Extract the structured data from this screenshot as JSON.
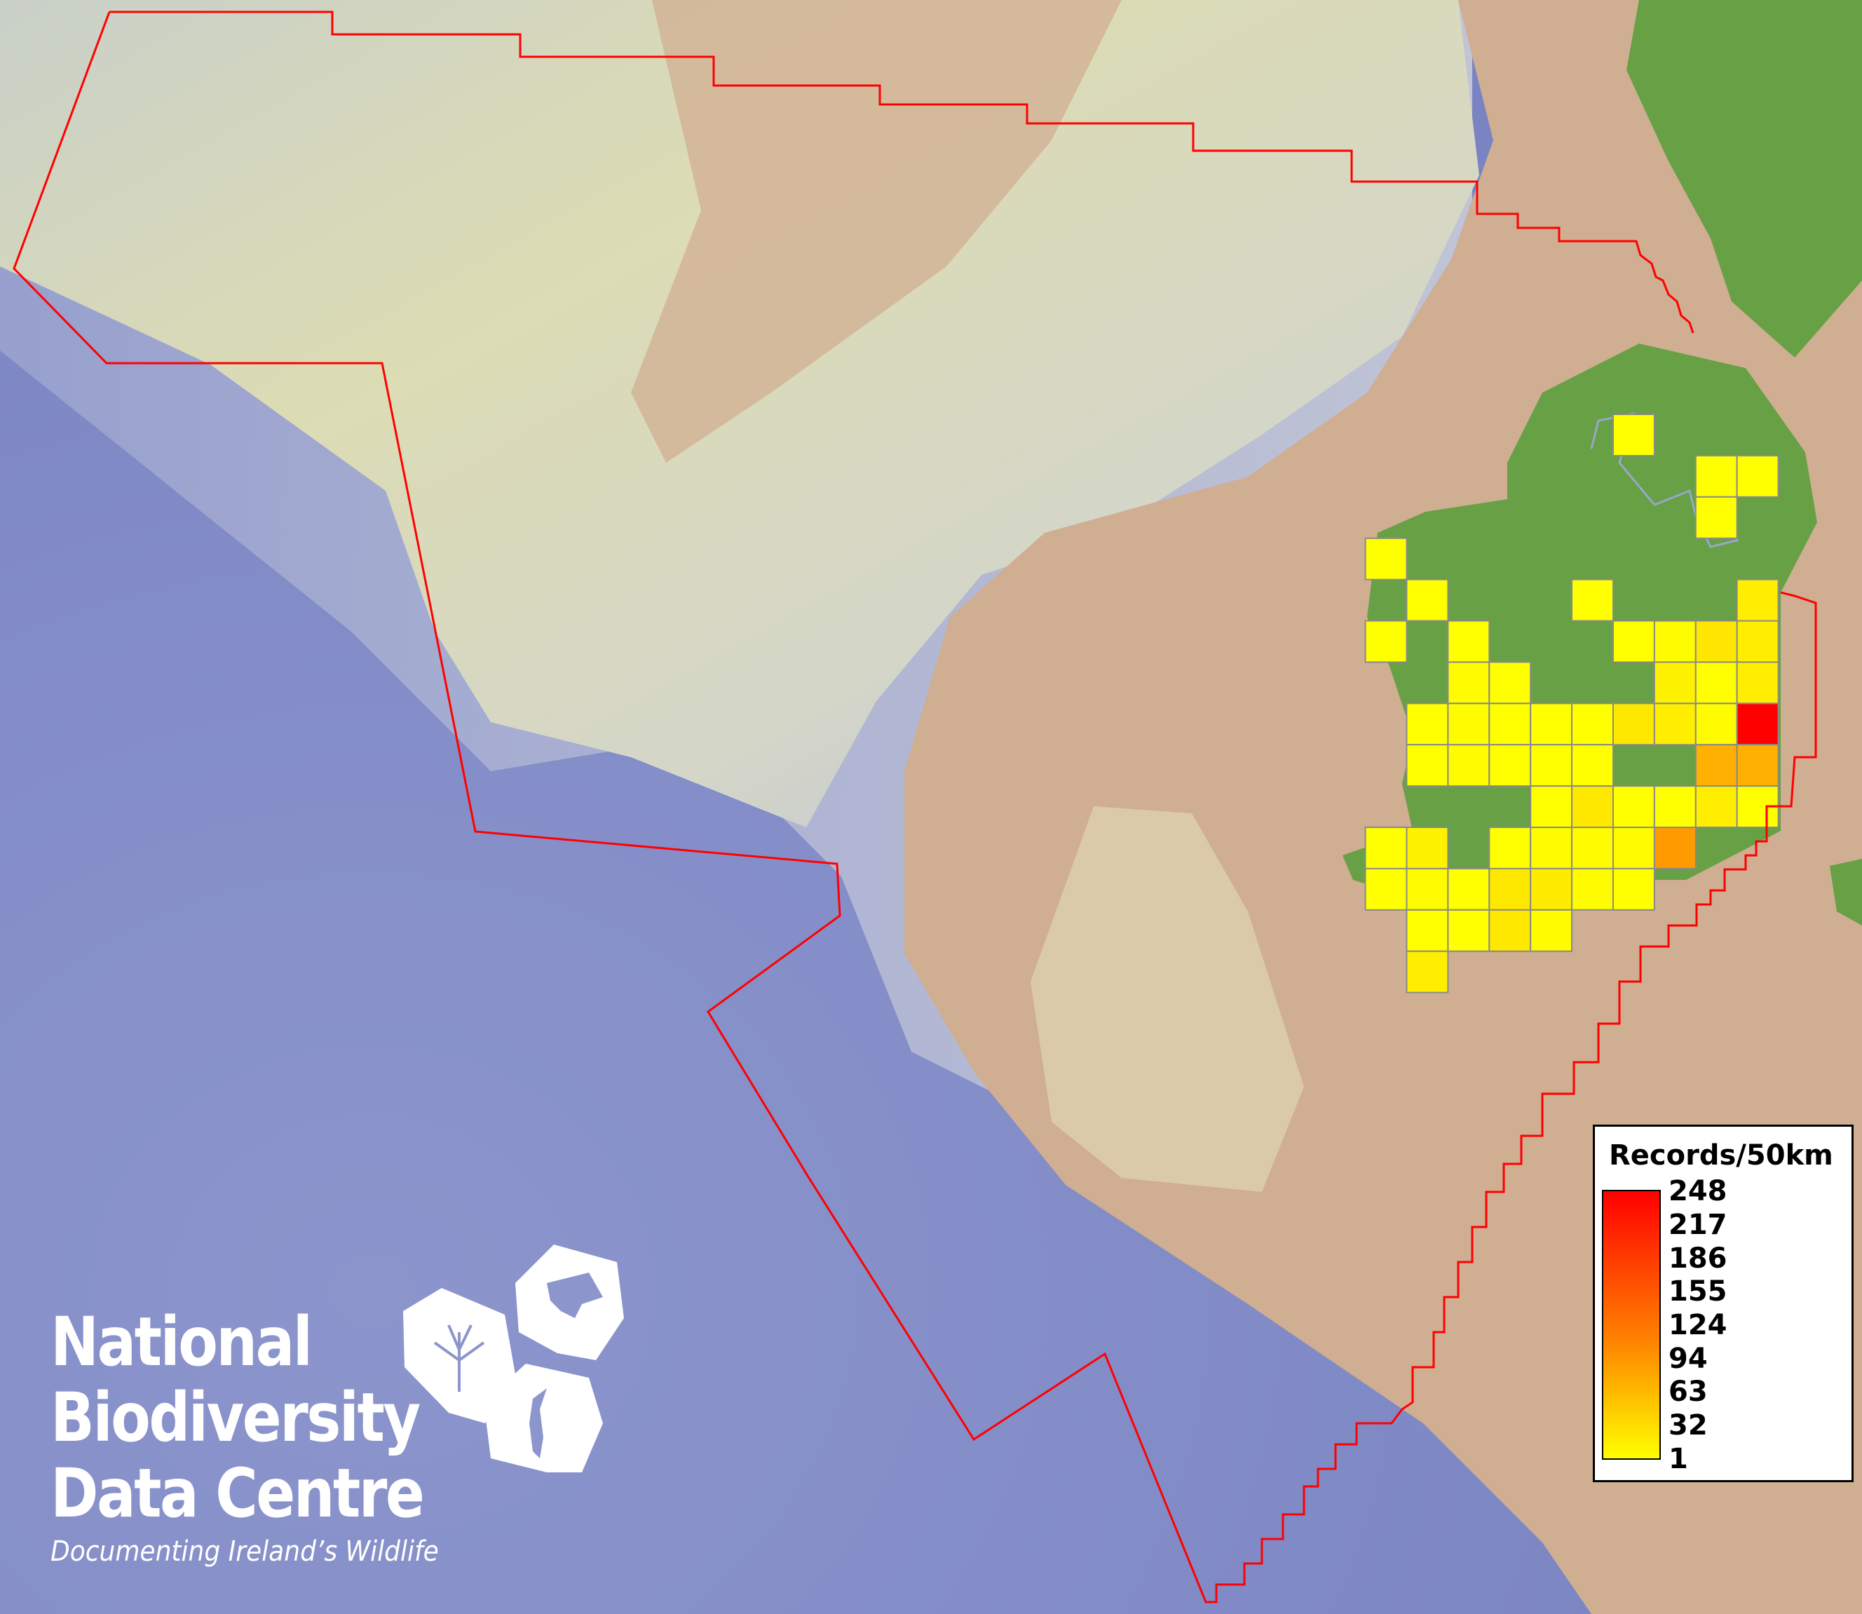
{
  "colors": {
    "ocean": "#7c86c4",
    "shelf": "#d8dcc0",
    "seabed_tan": "#cfae92",
    "land": "#67a045",
    "boundary": "#ff0000",
    "scale_low": "#ffff00",
    "scale_high": "#ff0000",
    "grid_outline": "#8a8a8a"
  },
  "legend": {
    "title": "Records/50km",
    "ticks": [
      "248",
      "217",
      "186",
      "155",
      "124",
      "94",
      "63",
      "32",
      "1"
    ],
    "min": 1,
    "max": 248
  },
  "logo": {
    "lines": [
      "National",
      "Biodiversity",
      "Data Centre"
    ],
    "tagline": "Documenting Ireland’s Wildlife",
    "icons": [
      "tree-icon",
      "butterfly-icon",
      "seahorse-icon"
    ]
  },
  "grid_cells": [
    {
      "row": 0,
      "col": 6,
      "records": 1
    },
    {
      "row": 1,
      "col": 8,
      "records": 1
    },
    {
      "row": 1,
      "col": 9,
      "records": 1
    },
    {
      "row": 2,
      "col": 8,
      "records": 1
    },
    {
      "row": 3,
      "col": 0,
      "records": 1
    },
    {
      "row": 4,
      "col": 1,
      "records": 1
    },
    {
      "row": 4,
      "col": 5,
      "records": 1
    },
    {
      "row": 4,
      "col": 9,
      "records": 17
    },
    {
      "row": 5,
      "col": 0,
      "records": 1
    },
    {
      "row": 5,
      "col": 2,
      "records": 1
    },
    {
      "row": 5,
      "col": 6,
      "records": 1
    },
    {
      "row": 5,
      "col": 7,
      "records": 5
    },
    {
      "row": 5,
      "col": 8,
      "records": 25
    },
    {
      "row": 5,
      "col": 9,
      "records": 17
    },
    {
      "row": 6,
      "col": 2,
      "records": 5
    },
    {
      "row": 6,
      "col": 3,
      "records": 1
    },
    {
      "row": 6,
      "col": 7,
      "records": 14
    },
    {
      "row": 6,
      "col": 8,
      "records": 1
    },
    {
      "row": 6,
      "col": 9,
      "records": 17
    },
    {
      "row": 7,
      "col": 1,
      "records": 1
    },
    {
      "row": 7,
      "col": 2,
      "records": 5
    },
    {
      "row": 7,
      "col": 3,
      "records": 1
    },
    {
      "row": 7,
      "col": 4,
      "records": 1
    },
    {
      "row": 7,
      "col": 5,
      "records": 1
    },
    {
      "row": 7,
      "col": 6,
      "records": 23
    },
    {
      "row": 7,
      "col": 7,
      "records": 17
    },
    {
      "row": 7,
      "col": 8,
      "records": 5
    },
    {
      "row": 7,
      "col": 9,
      "records": 248
    },
    {
      "row": 8,
      "col": 1,
      "records": 1
    },
    {
      "row": 8,
      "col": 2,
      "records": 5
    },
    {
      "row": 8,
      "col": 3,
      "records": 1
    },
    {
      "row": 8,
      "col": 4,
      "records": 1
    },
    {
      "row": 8,
      "col": 5,
      "records": 1
    },
    {
      "row": 8,
      "col": 8,
      "records": 78
    },
    {
      "row": 8,
      "col": 9,
      "records": 78
    },
    {
      "row": 9,
      "col": 4,
      "records": 1
    },
    {
      "row": 9,
      "col": 5,
      "records": 23
    },
    {
      "row": 9,
      "col": 6,
      "records": 1
    },
    {
      "row": 9,
      "col": 7,
      "records": 1
    },
    {
      "row": 9,
      "col": 8,
      "records": 17
    },
    {
      "row": 9,
      "col": 9,
      "records": 1
    },
    {
      "row": 10,
      "col": 0,
      "records": 1
    },
    {
      "row": 10,
      "col": 1,
      "records": 14
    },
    {
      "row": 10,
      "col": 3,
      "records": 1
    },
    {
      "row": 10,
      "col": 4,
      "records": 5
    },
    {
      "row": 10,
      "col": 5,
      "records": 5
    },
    {
      "row": 10,
      "col": 6,
      "records": 5
    },
    {
      "row": 10,
      "col": 7,
      "records": 99
    },
    {
      "row": 11,
      "col": 0,
      "records": 1
    },
    {
      "row": 11,
      "col": 1,
      "records": 5
    },
    {
      "row": 11,
      "col": 2,
      "records": 1
    },
    {
      "row": 11,
      "col": 3,
      "records": 23
    },
    {
      "row": 11,
      "col": 4,
      "records": 20
    },
    {
      "row": 11,
      "col": 5,
      "records": 5
    },
    {
      "row": 11,
      "col": 6,
      "records": 1
    },
    {
      "row": 12,
      "col": 1,
      "records": 1
    },
    {
      "row": 12,
      "col": 2,
      "records": 1
    },
    {
      "row": 12,
      "col": 3,
      "records": 23
    },
    {
      "row": 12,
      "col": 4,
      "records": 5
    },
    {
      "row": 13,
      "col": 1,
      "records": 17
    }
  ]
}
